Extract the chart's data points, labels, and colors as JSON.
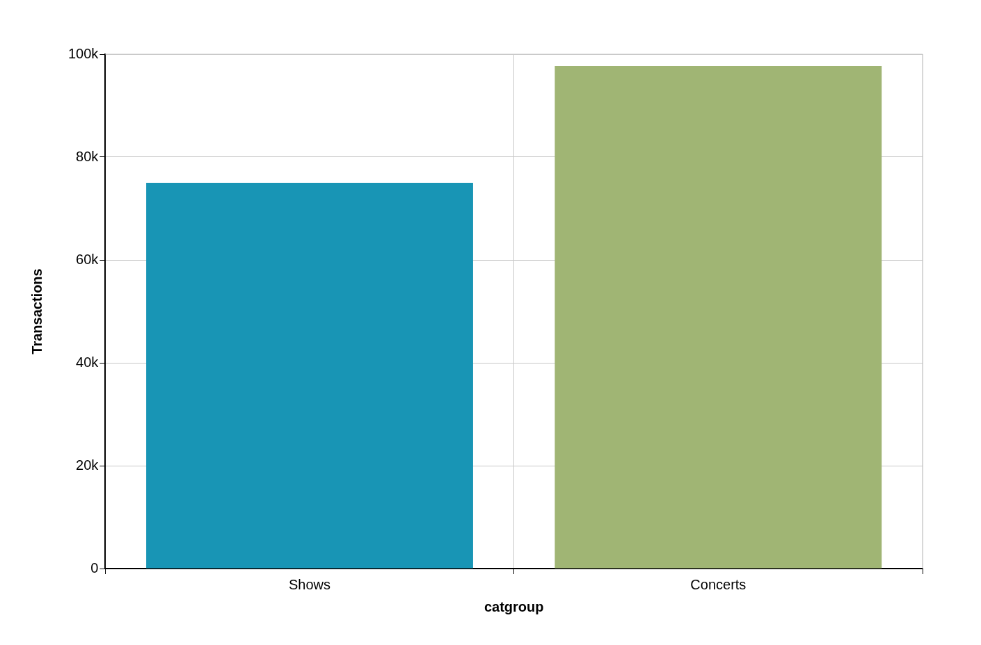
{
  "chart_data": {
    "type": "bar",
    "xlabel": "catgroup",
    "ylabel": "Transactions",
    "categories": [
      "Shows",
      "Concerts"
    ],
    "values": [
      75000,
      97700
    ],
    "colors": [
      "#1895b5",
      "#a0b574"
    ],
    "ylim": [
      0,
      100000
    ],
    "yticks": [
      {
        "value": 0,
        "label": "0"
      },
      {
        "value": 20000,
        "label": "20k"
      },
      {
        "value": 40000,
        "label": "40k"
      },
      {
        "value": 60000,
        "label": "60k"
      },
      {
        "value": 80000,
        "label": "80k"
      },
      {
        "value": 100000,
        "label": "100k"
      }
    ],
    "grid": true
  }
}
